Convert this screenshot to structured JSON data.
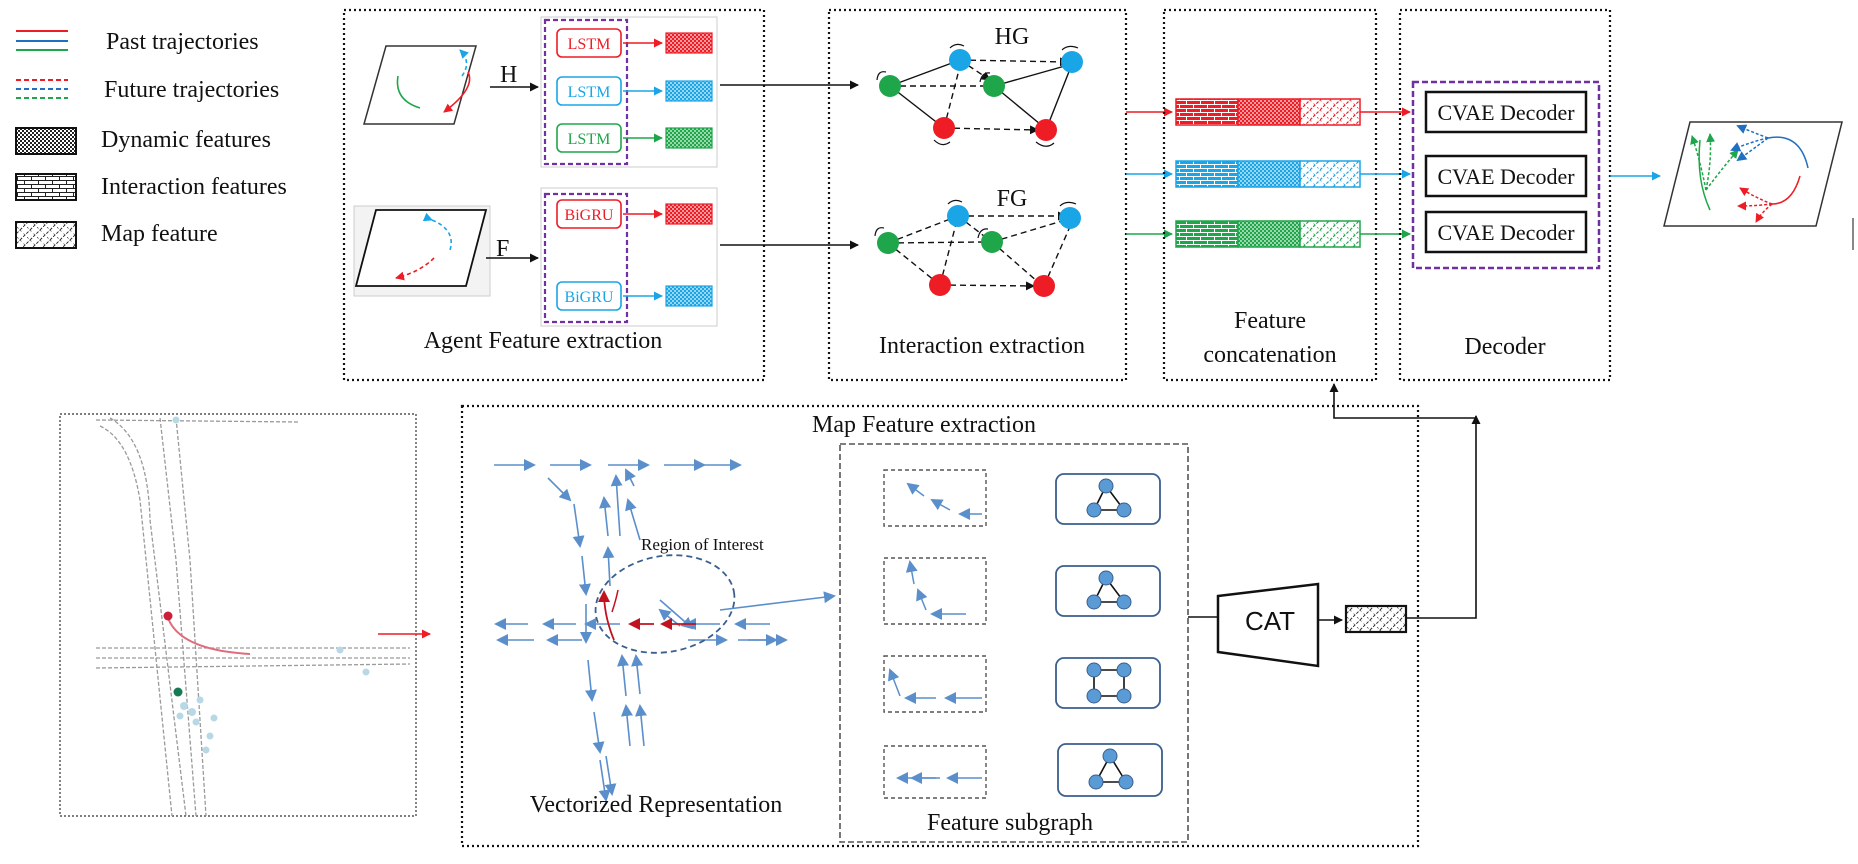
{
  "legend": {
    "past_trajectories": "Past trajectories",
    "future_trajectories": "Future trajectories",
    "dynamic_features": "Dynamic features",
    "interaction_features": "Interaction features",
    "map_feature": "Map feature"
  },
  "agent_panel": {
    "title": "Agent Feature extraction",
    "history_label": "H",
    "future_label": "F",
    "lstm_label": "LSTM",
    "bigru_label": "BiGRU"
  },
  "interaction_panel": {
    "title": "Interaction extraction",
    "history_graph_label": "HG",
    "future_graph_label": "FG"
  },
  "concat_panel": {
    "title_line1": "Feature",
    "title_line2": "concatenation"
  },
  "decoder_panel": {
    "title": "Decoder",
    "decoder_label": "CVAE Decoder"
  },
  "map_panel": {
    "title": "Map Feature extraction",
    "region_label": "Region of Interest",
    "vectorized_label": "Vectorized Representation",
    "subgraph_label": "Feature subgraph",
    "cat_label": "CAT"
  },
  "colors": {
    "red": "#ee1c25",
    "blue": "#1aa5e6",
    "green": "#1fa64a",
    "purple": "#7030a0",
    "steel_blue": "#5b8fcc",
    "node_blue": "#5b9bd5"
  }
}
